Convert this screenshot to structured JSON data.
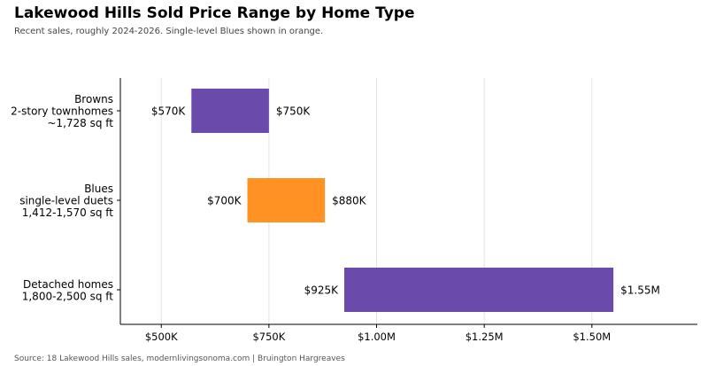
{
  "title": "Lakewood Hills Sold Price Range by Home Type",
  "subtitle": "Recent sales, roughly 2024-2026. Single-level Blues shown in orange.",
  "source": "Source: 18 Lakewood Hills sales, modernlivingsonoma.com | Bruington Hargreaves",
  "chart_data": {
    "type": "bar",
    "orientation": "horizontal-range",
    "categories": [
      [
        "Browns",
        "2-story townhomes",
        "~1,728 sq ft"
      ],
      [
        "Blues",
        "single-level duets",
        "1,412-1,570 sq ft"
      ],
      [
        "Detached homes",
        "1,800-2,500 sq ft"
      ]
    ],
    "ranges": [
      {
        "low": 570000,
        "high": 750000,
        "low_label": "$570K",
        "high_label": "$750K",
        "color": "#6a4aab"
      },
      {
        "low": 700000,
        "high": 880000,
        "low_label": "$700K",
        "high_label": "$880K",
        "color": "#ff9223"
      },
      {
        "low": 925000,
        "high": 1550000,
        "low_label": "$925K",
        "high_label": "$1.55M",
        "color": "#6a4aab"
      }
    ],
    "xticks": [
      500000,
      750000,
      1000000,
      1250000,
      1500000
    ],
    "xtick_labels": [
      "$500K",
      "$750K",
      "$1.00M",
      "$1.25M",
      "$1.50M"
    ],
    "xlim": [
      405000,
      1745000
    ],
    "grid": "vertical",
    "xlabel": "",
    "ylabel": ""
  }
}
